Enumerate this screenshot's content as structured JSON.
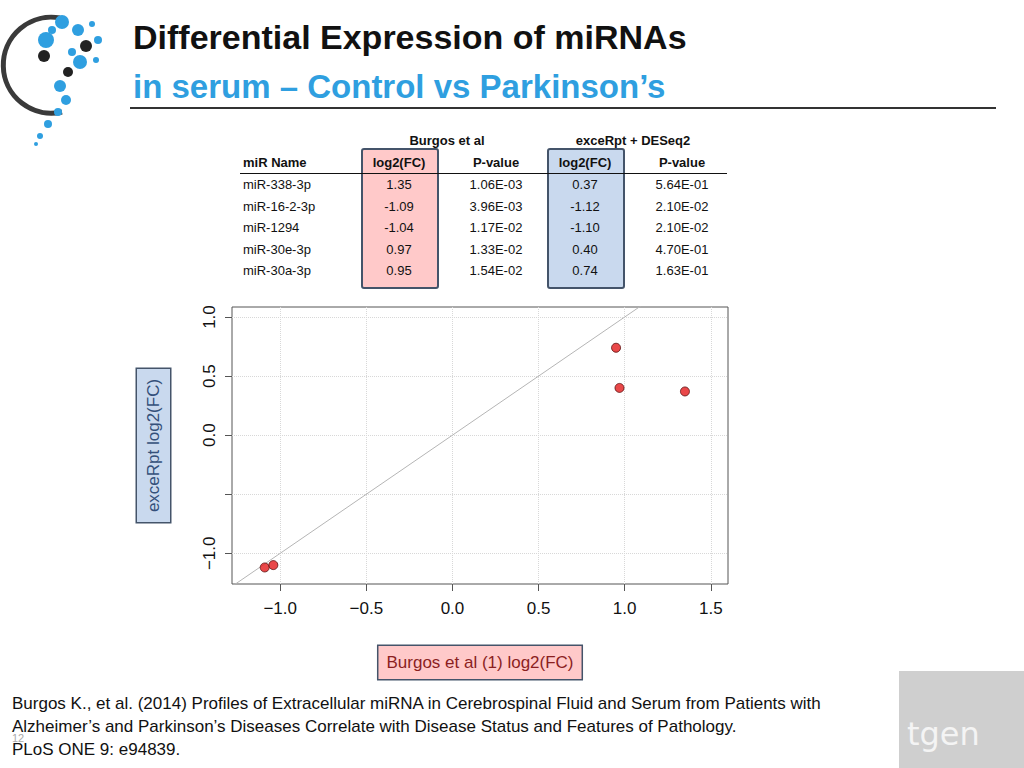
{
  "header": {
    "title": "Differential Expression of miRNAs",
    "subtitle": "in serum – Control vs Parkinson’s"
  },
  "table": {
    "group_headers": [
      "Burgos et al",
      "exceRpt + DESeq2"
    ],
    "columns": [
      "miR Name",
      "log2(FC)",
      "P-value",
      "log2(FC)",
      "P-value"
    ],
    "rows": [
      [
        "miR-338-3p",
        "1.35",
        "1.06E-03",
        "0.37",
        "5.64E-01"
      ],
      [
        "miR-16-2-3p",
        "-1.09",
        "3.96E-03",
        "-1.12",
        "2.10E-02"
      ],
      [
        "miR-1294",
        "-1.04",
        "1.17E-02",
        "-1.10",
        "2.10E-02"
      ],
      [
        "miR-30e-3p",
        "0.97",
        "1.33E-02",
        "0.40",
        "4.70E-01"
      ],
      [
        "miR-30a-3p",
        "0.95",
        "1.54E-02",
        "0.74",
        "1.63E-01"
      ]
    ],
    "highlight_colors": [
      "#ffc9c9",
      "#c9d9ee"
    ]
  },
  "chart_data": {
    "type": "scatter",
    "x_label": "Burgos et al (1) log2(FC)",
    "y_label": "exceRpt log2(FC)",
    "x": [
      1.35,
      -1.09,
      -1.04,
      0.97,
      0.95
    ],
    "values": [
      0.37,
      -1.12,
      -1.1,
      0.4,
      0.74
    ],
    "color": "#e31a1c",
    "marker": "circle",
    "xlim": [
      -1.28,
      1.6
    ],
    "ylim": [
      -1.26,
      1.085
    ],
    "xticks": [
      {
        "value": -1.0,
        "label": "−1.0"
      },
      {
        "value": -0.5,
        "label": "−0.5"
      },
      {
        "value": 0,
        "label": "0.0"
      },
      {
        "value": 0.5,
        "label": "0.5"
      },
      {
        "value": 1.0,
        "label": "1.0"
      },
      {
        "value": 1.5,
        "label": "1.5"
      }
    ],
    "yticks": [
      {
        "value": -1.0,
        "label": "−1.0"
      },
      {
        "value": -0.5,
        "label": null
      },
      {
        "value": 0,
        "label": "0.0"
      },
      {
        "value": 0.5,
        "label": "0.5"
      },
      {
        "value": 1.0,
        "label": "1.0"
      }
    ],
    "grid": true,
    "reference_line": {
      "x": [
        -1.28,
        1.6
      ],
      "y": [
        -1.28,
        1.6
      ],
      "color": "#b5b5b5"
    }
  },
  "footer": {
    "citation": [
      "Burgos K., et al.  (2014) Profiles of Extracellular miRNA in Cerebrospinal Fluid and Serum from Patients with",
      "Alzheimer’s and Parkinson’s Diseases Correlate with Disease Status and Features of Pathology.",
      "PLoS ONE 9: e94839."
    ],
    "page_number": "12",
    "logo": "tgen"
  }
}
